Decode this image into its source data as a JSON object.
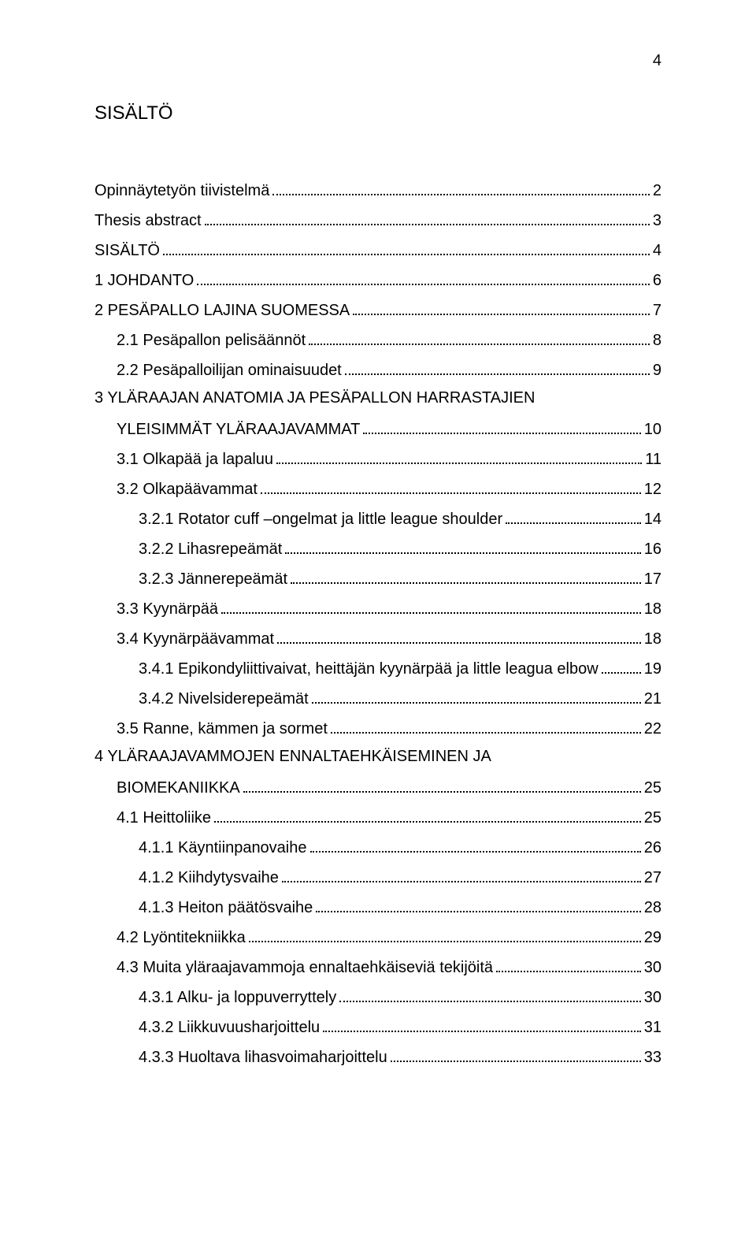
{
  "page_number": "4",
  "title": "SISÄLTÖ",
  "colors": {
    "text": "#000000",
    "background": "#ffffff",
    "leader": "#000000"
  },
  "typography": {
    "title_fontsize_pt": 18,
    "body_fontsize_pt": 15,
    "font_family": "Arial"
  },
  "toc": [
    {
      "label": "Opinnäytetyön tiivistelmä",
      "page": "2",
      "indent": 0
    },
    {
      "label": "Thesis abstract",
      "page": "3",
      "indent": 0
    },
    {
      "label": "SISÄLTÖ",
      "page": "4",
      "indent": 0
    },
    {
      "label": "1 JOHDANTO",
      "page": "6",
      "indent": 0
    },
    {
      "label": "2 PESÄPALLO LAJINA SUOMESSA",
      "page": "7",
      "indent": 0
    },
    {
      "label": "2.1 Pesäpallon pelisäännöt",
      "page": "8",
      "indent": 1
    },
    {
      "label": "2.2 Pesäpalloilijan ominaisuudet",
      "page": "9",
      "indent": 1
    },
    {
      "label_top": "3 YLÄRAAJAN ANATOMIA JA PESÄPALLON HARRASTAJIEN",
      "label": "YLEISIMMÄT YLÄRAAJAVAMMAT",
      "page": "10",
      "indent": 0,
      "multiline": true,
      "indent_second": 1
    },
    {
      "label": "3.1 Olkapää ja lapaluu",
      "page": "11",
      "indent": 1
    },
    {
      "label": "3.2 Olkapäävammat",
      "page": "12",
      "indent": 1
    },
    {
      "label": "3.2.1 Rotator cuff –ongelmat ja little league shoulder",
      "page": "14",
      "indent": 2
    },
    {
      "label": "3.2.2 Lihasrepeämät",
      "page": "16",
      "indent": 2
    },
    {
      "label": "3.2.3 Jännerepeämät",
      "page": "17",
      "indent": 2
    },
    {
      "label": "3.3 Kyynärpää",
      "page": "18",
      "indent": 1
    },
    {
      "label": "3.4 Kyynärpäävammat",
      "page": "18",
      "indent": 1
    },
    {
      "label": "3.4.1 Epikondyliittivaivat, heittäjän kyynärpää ja little leagua elbow",
      "page": "19",
      "indent": 2
    },
    {
      "label": "3.4.2 Nivelsiderepeämät",
      "page": "21",
      "indent": 2
    },
    {
      "label": "3.5 Ranne, kämmen ja sormet",
      "page": "22",
      "indent": 1
    },
    {
      "label_top": "4 YLÄRAAJAVAMMOJEN ENNALTAEHKÄISEMINEN JA",
      "label": "BIOMEKANIIKKA",
      "page": "25",
      "indent": 0,
      "multiline": true,
      "indent_second": 1
    },
    {
      "label": "4.1 Heittoliike",
      "page": "25",
      "indent": 1
    },
    {
      "label": "4.1.1 Käyntiinpanovaihe",
      "page": "26",
      "indent": 2
    },
    {
      "label": "4.1.2 Kiihdytysvaihe",
      "page": "27",
      "indent": 2
    },
    {
      "label": "4.1.3 Heiton päätösvaihe",
      "page": "28",
      "indent": 2
    },
    {
      "label": "4.2 Lyöntitekniikka",
      "page": "29",
      "indent": 1
    },
    {
      "label": "4.3 Muita yläraajavammoja ennaltaehkäiseviä tekijöitä",
      "page": "30",
      "indent": 1
    },
    {
      "label": "4.3.1 Alku- ja loppuverryttely",
      "page": "30",
      "indent": 2
    },
    {
      "label": "4.3.2 Liikkuvuusharjoittelu",
      "page": "31",
      "indent": 2
    },
    {
      "label": "4.3.3 Huoltava lihasvoimaharjoittelu",
      "page": "33",
      "indent": 2
    }
  ]
}
